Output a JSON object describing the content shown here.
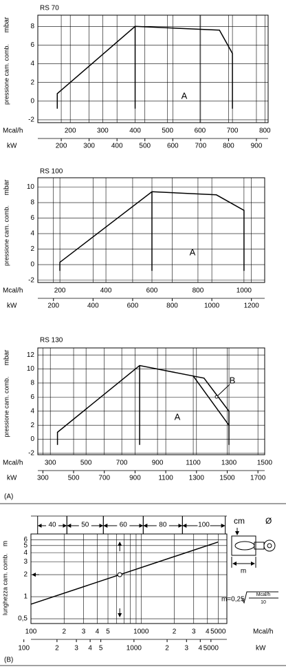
{
  "chart_data": [
    {
      "type": "area",
      "title": "RS 70",
      "ylabel": "pressione cam. comb.",
      "yunit": "mbar",
      "xlabel": "Mcal/h",
      "x2label": "kW",
      "xlim": [
        100,
        810
      ],
      "xticks": [
        200,
        300,
        400,
        500,
        600,
        700,
        800
      ],
      "x2lim": [
        116,
        942
      ],
      "x2ticks": [
        200,
        300,
        400,
        500,
        600,
        700,
        800,
        900
      ],
      "ylim": [
        -2.3,
        9.2
      ],
      "yticks": [
        -2,
        0,
        2,
        4,
        6,
        8
      ],
      "grid": true,
      "series": [
        {
          "name": "A",
          "color": "#000000",
          "x": [
            160,
            160,
            400,
            660,
            700,
            700
          ],
          "values": [
            -0.8,
            0.8,
            8,
            7.6,
            5.1,
            -0.8
          ]
        }
      ]
    },
    {
      "type": "area",
      "title": "RS 100",
      "ylabel": "pressione cam. comb.",
      "yunit": "mbar",
      "xlabel": "Mcal/h",
      "x2label": "kW",
      "xlim": [
        104,
        1090
      ],
      "xticks": [
        200,
        400,
        600,
        800,
        1000
      ],
      "x2lim": [
        121,
        1267
      ],
      "x2ticks": [
        200,
        400,
        600,
        800,
        1000,
        1200
      ],
      "ylim": [
        -2.3,
        11.2
      ],
      "yticks": [
        -2,
        0,
        2,
        4,
        6,
        8,
        10
      ],
      "grid": true,
      "series": [
        {
          "name": "A",
          "color": "#000000",
          "x": [
            200,
            200,
            600,
            880,
            1000,
            1000
          ],
          "values": [
            -0.8,
            0.3,
            9.4,
            9,
            7,
            -0.8
          ]
        }
      ]
    },
    {
      "type": "area",
      "title": "RS 130",
      "ylabel": "pressione cam. comb.",
      "yunit": "mbar",
      "xlabel": "Mcal/h",
      "x2label": "kW",
      "xlim": [
        230,
        1500
      ],
      "xticks": [
        300,
        500,
        700,
        900,
        1100,
        1300,
        1500
      ],
      "x2lim": [
        267,
        1744
      ],
      "x2ticks": [
        300,
        500,
        700,
        900,
        1100,
        1300,
        1500,
        1700
      ],
      "ylim": [
        -2.2,
        13
      ],
      "yticks": [
        -2,
        0,
        2,
        4,
        6,
        8,
        10,
        12
      ],
      "grid": true,
      "series": [
        {
          "name": "A",
          "color": "#000000",
          "x": [
            340,
            340,
            800,
            1100,
            1300,
            1300
          ],
          "values": [
            -0.8,
            1,
            10.5,
            9,
            2,
            -0.8
          ]
        },
        {
          "name": "B",
          "color": "#000000",
          "x": [
            1100,
            1160,
            1300,
            1300
          ],
          "values": [
            9,
            8.7,
            4,
            2
          ]
        }
      ]
    },
    {
      "type": "line",
      "ylabel": "lunghezza cam. comb.",
      "yunit": "m",
      "xlabel": "Mcal/h",
      "x2label": "kW",
      "xlog": true,
      "ylog": true,
      "grid": true,
      "xlim": [
        100,
        6000
      ],
      "xticks": [
        100,
        {
          "value": 200,
          "label": "2"
        },
        {
          "value": 300,
          "label": "3"
        },
        {
          "value": 400,
          "label": "4"
        },
        {
          "value": 500,
          "label": "5"
        },
        1000,
        {
          "value": 2000,
          "label": "2"
        },
        {
          "value": 3000,
          "label": "3"
        },
        {
          "value": 4000,
          "label": "4"
        },
        5000
      ],
      "xminor": [
        600,
        700,
        800,
        900
      ],
      "x2lim": [
        116,
        6977
      ],
      "x2ticks": [
        100,
        {
          "value": 200,
          "label": "2"
        },
        {
          "value": 300,
          "label": "3"
        },
        {
          "value": 400,
          "label": "4"
        },
        {
          "value": 500,
          "label": "5"
        },
        1000,
        {
          "value": 2000,
          "label": "2"
        },
        {
          "value": 3000,
          "label": "3"
        },
        {
          "value": 4000,
          "label": "4"
        },
        5000
      ],
      "ylim": [
        0.43,
        7.2
      ],
      "yticks": [
        {
          "value": 0.5,
          "label": "0,5"
        },
        1,
        2,
        3,
        4,
        5,
        6
      ],
      "series": [
        {
          "name": "m",
          "color": "#000000",
          "x": [
            100,
            5000
          ],
          "values": [
            0.79,
            5.59
          ]
        }
      ],
      "point": {
        "x": 640,
        "y": 2
      },
      "band_unit": "cm",
      "band_symbol": "Ø",
      "bands": [
        {
          "label": "40",
          "from": 115,
          "to": 212
        },
        {
          "label": "50",
          "from": 212,
          "to": 454
        },
        {
          "label": "60",
          "from": 454,
          "to": 1045
        },
        {
          "label": "80",
          "from": 1045,
          "to": 2370
        },
        {
          "label": "100",
          "from": 2370,
          "to": 5800
        }
      ],
      "dimension": "m",
      "formula_lhs": "m=0,25",
      "formula_num": "Mcal/h",
      "formula_den": "10"
    }
  ],
  "captions": {
    "a": "(A)",
    "b": "(B)"
  }
}
